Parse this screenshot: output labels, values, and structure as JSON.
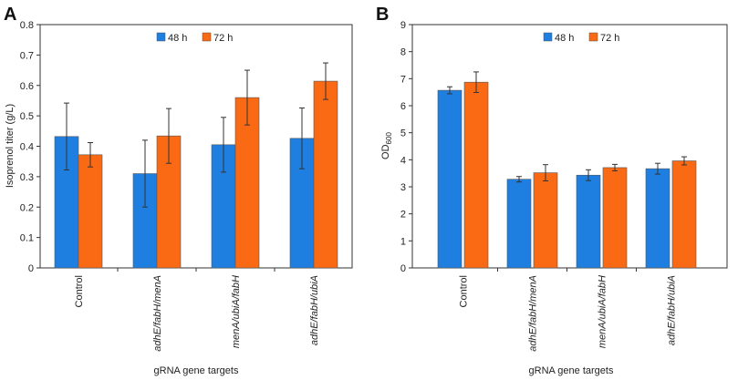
{
  "chart_data": [
    {
      "panel": "A",
      "type": "bar",
      "title": "",
      "xlabel": "gRNA gene targets",
      "ylabel": "Isoprenol titer (g/L)",
      "ylim": [
        0,
        0.8
      ],
      "yticks": [
        "0",
        "0.1",
        "0.2",
        "0.3",
        "0.4",
        "0.5",
        "0.6",
        "0.7",
        "0.8"
      ],
      "ytick_values": [
        0,
        0.1,
        0.2,
        0.3,
        0.4,
        0.5,
        0.6,
        0.7,
        0.8
      ],
      "grid": false,
      "legend_position": "top-center",
      "categories": [
        "Control",
        "adhE/fabH/menA",
        "menA/ubiA/fabH",
        "adhE/fabH/ubiA"
      ],
      "categories_italic": [
        false,
        true,
        true,
        true
      ],
      "series": [
        {
          "name": "48 h",
          "color": "#1f7fe0",
          "values": [
            0.432,
            0.31,
            0.405,
            0.426
          ],
          "errors": [
            0.11,
            0.11,
            0.09,
            0.1
          ]
        },
        {
          "name": "72 h",
          "color": "#fa6a14",
          "values": [
            0.372,
            0.434,
            0.56,
            0.614
          ],
          "errors": [
            0.04,
            0.09,
            0.09,
            0.06
          ]
        }
      ]
    },
    {
      "panel": "B",
      "type": "bar",
      "title": "",
      "xlabel": "gRNA gene targets",
      "ylabel": "OD",
      "ylabel_subscript": "600",
      "ylim": [
        0,
        9
      ],
      "yticks": [
        "0",
        "1",
        "2",
        "3",
        "4",
        "5",
        "6",
        "7",
        "8",
        "9"
      ],
      "ytick_values": [
        0,
        1,
        2,
        3,
        4,
        5,
        6,
        7,
        8,
        9
      ],
      "grid": false,
      "legend_position": "top-center",
      "categories": [
        "Control",
        "adhE/fabH/menA",
        "menA/ubiA/fabH",
        "adhE/fabH/ubiA"
      ],
      "categories_italic": [
        false,
        true,
        true,
        true
      ],
      "series": [
        {
          "name": "48 h",
          "color": "#1f7fe0",
          "values": [
            6.57,
            3.28,
            3.43,
            3.67
          ],
          "errors": [
            0.13,
            0.1,
            0.2,
            0.2
          ]
        },
        {
          "name": "72 h",
          "color": "#fa6a14",
          "values": [
            6.87,
            3.52,
            3.71,
            3.96
          ],
          "errors": [
            0.38,
            0.3,
            0.12,
            0.15
          ]
        }
      ]
    }
  ]
}
